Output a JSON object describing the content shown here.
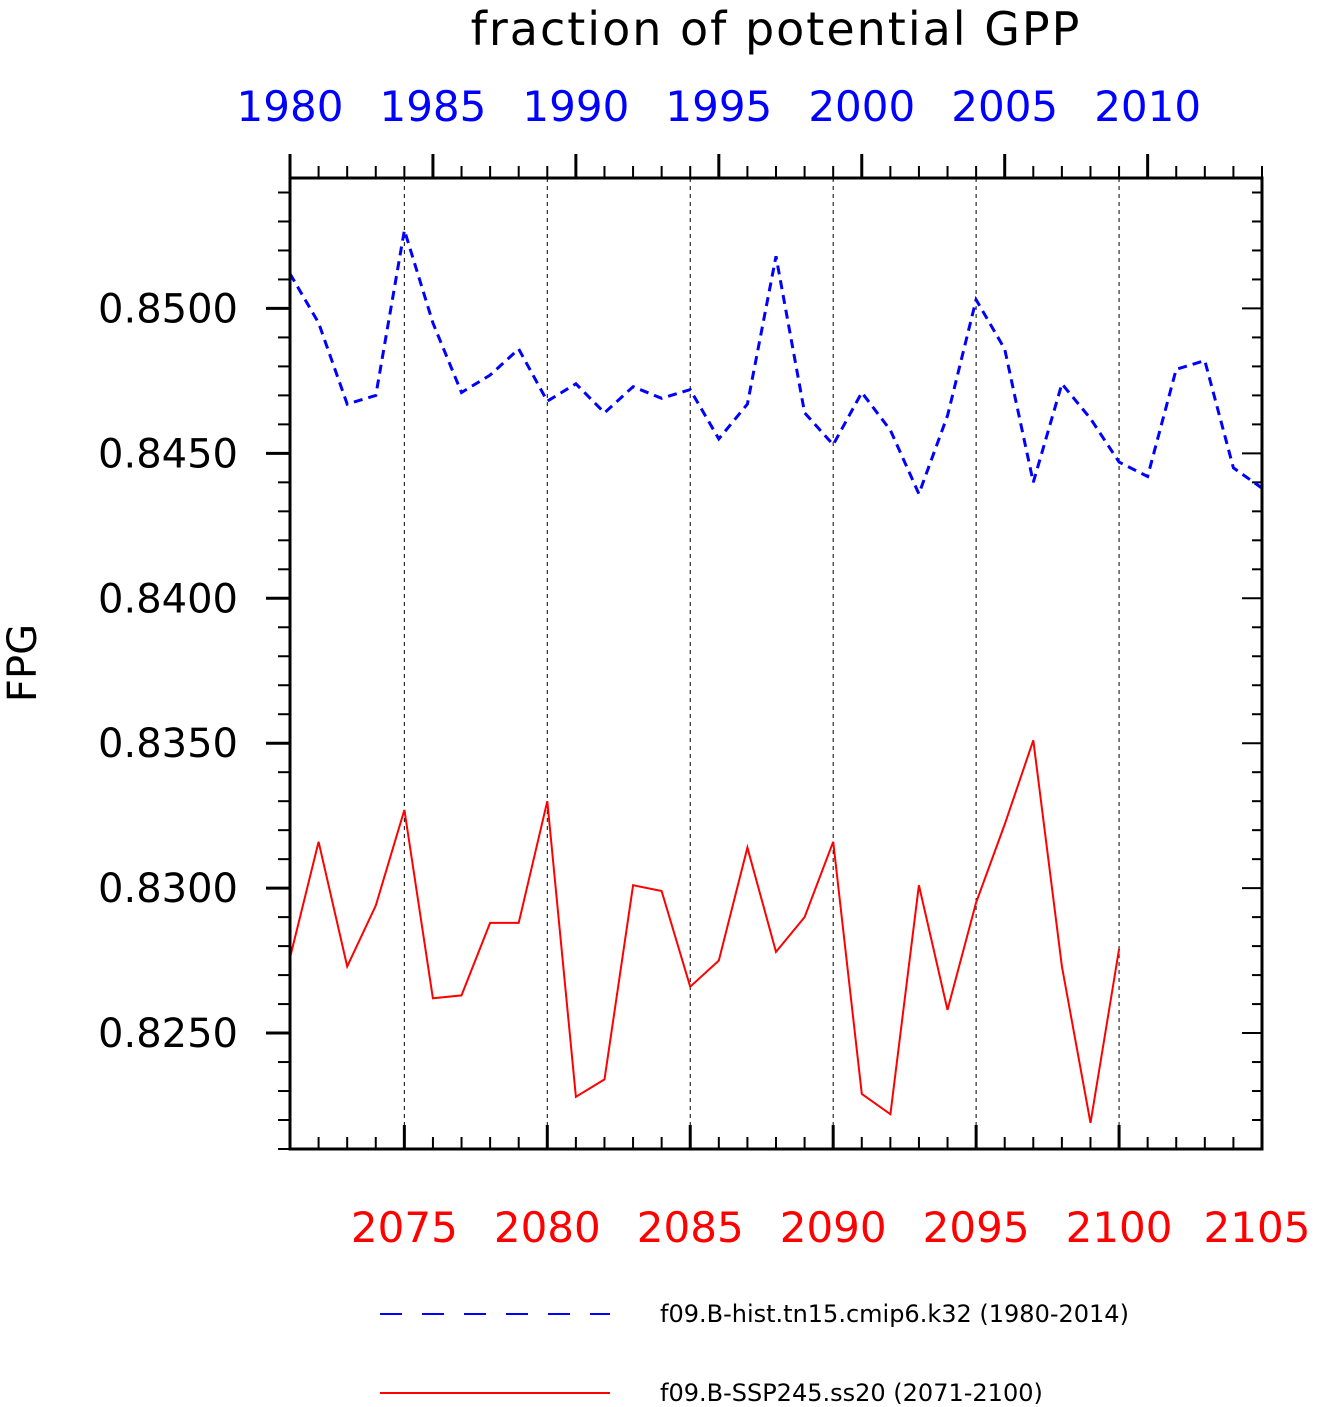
{
  "chart_data": {
    "type": "line",
    "title": "fraction of potential GPP",
    "ylabel": "FPG",
    "ylim": [
      0.821,
      0.8545
    ],
    "yticks": [
      "0.8250",
      "0.8300",
      "0.8350",
      "0.8400",
      "0.8450",
      "0.8500"
    ],
    "grid": "vertical dashed",
    "legend_position": "bottom",
    "top_axis": {
      "color": "#0000ff",
      "range": [
        1980,
        2014
      ],
      "tick_labels": [
        "1980",
        "1985",
        "1990",
        "1995",
        "2000",
        "2005",
        "2010"
      ]
    },
    "bottom_axis": {
      "color": "#ff0000",
      "range": [
        2071,
        2105
      ],
      "tick_labels": [
        "2075",
        "2080",
        "2085",
        "2090",
        "2095",
        "2100",
        "2105"
      ]
    },
    "series": [
      {
        "name": "f09.B-hist.tn15.cmip6.k32 (1980-2014)",
        "color": "#0000ff",
        "style": "dashed",
        "axis": "top",
        "x": [
          1980,
          1981,
          1982,
          1983,
          1984,
          1985,
          1986,
          1987,
          1988,
          1989,
          1990,
          1991,
          1992,
          1993,
          1994,
          1995,
          1996,
          1997,
          1998,
          1999,
          2000,
          2001,
          2002,
          2003,
          2004,
          2005,
          2006,
          2007,
          2008,
          2009,
          2010,
          2011,
          2012,
          2013,
          2014
        ],
        "values": [
          0.8512,
          0.8495,
          0.8467,
          0.847,
          0.8527,
          0.8495,
          0.8471,
          0.8477,
          0.8486,
          0.8468,
          0.8474,
          0.8464,
          0.8473,
          0.8469,
          0.8472,
          0.8455,
          0.8467,
          0.8518,
          0.8464,
          0.8453,
          0.8471,
          0.8458,
          0.8436,
          0.8463,
          0.8503,
          0.8486,
          0.844,
          0.8474,
          0.8462,
          0.8447,
          0.8442,
          0.8479,
          0.8482,
          0.8445,
          0.8438
        ]
      },
      {
        "name": "f09.B-SSP245.ss20 (2071-2100)",
        "color": "#ff0000",
        "style": "solid",
        "axis": "bottom",
        "x": [
          2071,
          2072,
          2073,
          2074,
          2075,
          2076,
          2077,
          2078,
          2079,
          2080,
          2081,
          2082,
          2083,
          2084,
          2085,
          2086,
          2087,
          2088,
          2089,
          2090,
          2091,
          2092,
          2093,
          2094,
          2095,
          2096,
          2097,
          2098,
          2099,
          2100
        ],
        "values": [
          0.8276,
          0.8316,
          0.8273,
          0.8294,
          0.8327,
          0.8262,
          0.8263,
          0.8288,
          0.8288,
          0.833,
          0.8228,
          0.8234,
          0.8301,
          0.8299,
          0.8266,
          0.8275,
          0.8314,
          0.8278,
          0.829,
          0.8316,
          0.8229,
          0.8222,
          0.8301,
          0.8258,
          0.8295,
          0.8322,
          0.8351,
          0.8273,
          0.8219,
          0.8279
        ]
      }
    ]
  }
}
